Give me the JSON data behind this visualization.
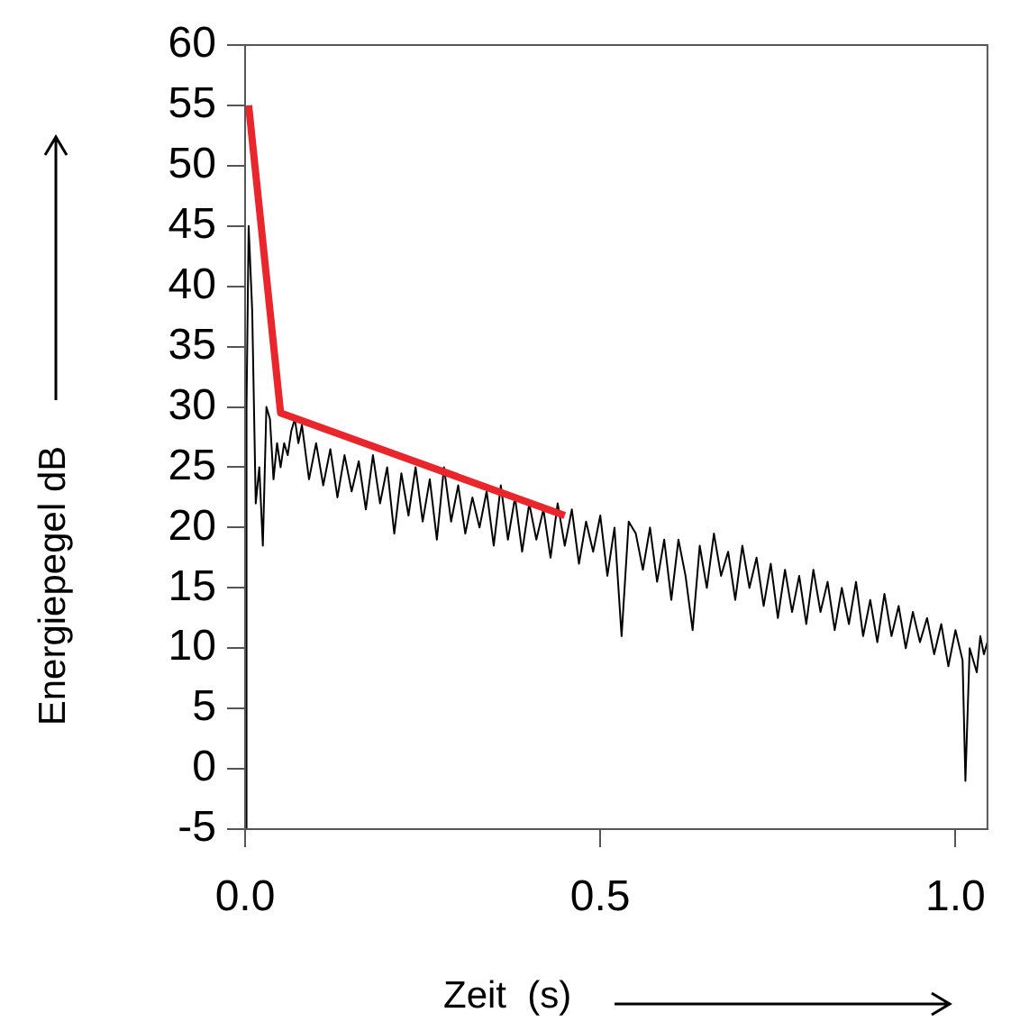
{
  "chart_data": {
    "type": "line",
    "xlabel": "Zeit  (s)",
    "ylabel": "Energiepegel dB",
    "xlim": [
      0,
      1.045
    ],
    "ylim": [
      -5,
      60
    ],
    "xticks": [
      {
        "value": 0,
        "label": "0.0"
      },
      {
        "value": 0.5,
        "label": "0.5"
      },
      {
        "value": 1,
        "label": "1.0"
      }
    ],
    "yticks": [
      -5,
      0,
      5,
      10,
      15,
      20,
      25,
      30,
      35,
      40,
      45,
      50,
      55,
      60
    ],
    "legend": false,
    "marker": "none",
    "line_style": "solid",
    "series": [
      {
        "color": "#000000",
        "x": [
          0,
          0.002,
          0.005,
          0.01,
          0.015,
          0.02,
          0.025,
          0.03,
          0.035,
          0.04,
          0.045,
          0.05,
          0.055,
          0.06,
          0.065,
          0.07,
          0.075,
          0.08,
          0.09,
          0.1,
          0.11,
          0.12,
          0.13,
          0.14,
          0.15,
          0.16,
          0.17,
          0.18,
          0.19,
          0.2,
          0.21,
          0.22,
          0.23,
          0.24,
          0.25,
          0.26,
          0.27,
          0.28,
          0.29,
          0.3,
          0.31,
          0.32,
          0.33,
          0.34,
          0.35,
          0.36,
          0.37,
          0.38,
          0.39,
          0.4,
          0.41,
          0.42,
          0.43,
          0.44,
          0.45,
          0.46,
          0.47,
          0.48,
          0.49,
          0.5,
          0.51,
          0.52,
          0.53,
          0.54,
          0.55,
          0.56,
          0.57,
          0.58,
          0.59,
          0.6,
          0.61,
          0.62,
          0.63,
          0.64,
          0.65,
          0.66,
          0.67,
          0.68,
          0.69,
          0.7,
          0.71,
          0.72,
          0.73,
          0.74,
          0.75,
          0.76,
          0.77,
          0.78,
          0.79,
          0.8,
          0.81,
          0.82,
          0.83,
          0.84,
          0.85,
          0.86,
          0.87,
          0.88,
          0.89,
          0.9,
          0.91,
          0.92,
          0.93,
          0.94,
          0.95,
          0.96,
          0.97,
          0.98,
          0.99,
          1,
          1.01,
          1.014,
          1.02,
          1.03,
          1.035,
          1.04,
          1.045
        ],
        "values": [
          -5,
          30,
          45,
          38,
          22,
          25,
          18.5,
          30,
          29,
          24,
          27,
          25,
          27,
          26,
          28,
          29,
          27,
          28.5,
          24,
          27,
          23.5,
          26.5,
          22.5,
          26,
          23,
          25.5,
          21.5,
          26,
          22,
          25,
          19.5,
          24.5,
          21,
          25,
          20.5,
          24,
          19,
          25,
          20.5,
          23.5,
          19.5,
          22.5,
          20,
          23,
          18.5,
          23.5,
          19,
          22.5,
          18,
          22,
          19,
          21.5,
          17.5,
          22,
          18.5,
          21.5,
          17,
          20.5,
          18,
          21,
          16,
          20,
          11,
          20.5,
          19.5,
          16.5,
          20,
          15.5,
          19,
          14,
          19,
          16,
          11.5,
          18.5,
          15,
          19.5,
          16,
          18,
          14,
          18.5,
          15,
          17.5,
          13.5,
          17,
          12.5,
          16.5,
          13,
          16,
          12,
          16.5,
          13,
          15.5,
          11.5,
          15,
          12,
          15.5,
          11,
          14,
          10.5,
          14.5,
          11,
          13.5,
          10,
          13,
          10.5,
          12.5,
          9.5,
          12,
          8.5,
          11.5,
          9,
          -1,
          10,
          8,
          11,
          9.5,
          10.5
        ]
      },
      {
        "color": "#e8262b",
        "x": [
          0.005,
          0.05,
          0.45
        ],
        "values": [
          55,
          29.5,
          21
        ]
      }
    ]
  }
}
